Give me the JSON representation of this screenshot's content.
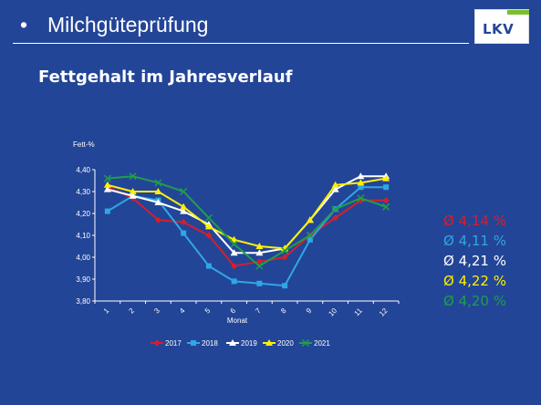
{
  "header": {
    "bullet": "•",
    "title": "Milchgüteprüfung"
  },
  "logo": {
    "text": "LKV"
  },
  "subtitle": "Fettgehalt im Jahresverlauf",
  "averages": [
    {
      "label": "Ø 4,14 %",
      "color": "#d81e2a"
    },
    {
      "label": "Ø 4,11 %",
      "color": "#2fa6e6"
    },
    {
      "label": "Ø 4,21 %",
      "color": "#ffffff"
    },
    {
      "label": "Ø 4,22 %",
      "color": "#ffef00"
    },
    {
      "label": "Ø 4,20 %",
      "color": "#1f9e4b"
    }
  ],
  "chart_data": {
    "type": "line",
    "ylabel": "Fett-%",
    "xlabel": "Monat",
    "x": [
      "1",
      "2",
      "3",
      "4",
      "5",
      "6",
      "7",
      "8",
      "9",
      "10",
      "11",
      "12"
    ],
    "ylim": [
      3.8,
      4.4
    ],
    "yticks": [
      "3,80",
      "3,90",
      "4,00",
      "4,10",
      "4,20",
      "4,30",
      "4,40"
    ],
    "grid": false,
    "legend_position": "bottom",
    "series": [
      {
        "name": "2017",
        "color": "#d81e2a",
        "marker": "diamond",
        "values": [
          4.32,
          4.27,
          4.17,
          4.16,
          4.1,
          3.96,
          3.98,
          4.0,
          4.1,
          4.18,
          4.26,
          4.26
        ]
      },
      {
        "name": "2018",
        "color": "#2fa6e6",
        "marker": "square",
        "values": [
          4.21,
          4.28,
          4.26,
          4.11,
          3.96,
          3.89,
          3.88,
          3.87,
          4.08,
          4.22,
          4.32,
          4.32
        ]
      },
      {
        "name": "2019",
        "color": "#ffffff",
        "marker": "triangle",
        "values": [
          4.31,
          4.28,
          4.25,
          4.21,
          4.15,
          4.02,
          4.02,
          4.04,
          4.17,
          4.31,
          4.37,
          4.37
        ]
      },
      {
        "name": "2020",
        "color": "#ffef00",
        "marker": "triangle",
        "values": [
          4.33,
          4.3,
          4.3,
          4.23,
          4.14,
          4.08,
          4.05,
          4.04,
          4.17,
          4.33,
          4.34,
          4.36
        ]
      },
      {
        "name": "2021",
        "color": "#1f9e4b",
        "marker": "star",
        "values": [
          4.36,
          4.37,
          4.34,
          4.3,
          4.18,
          4.06,
          3.96,
          4.03,
          4.1,
          4.22,
          4.27,
          4.23
        ]
      }
    ]
  }
}
